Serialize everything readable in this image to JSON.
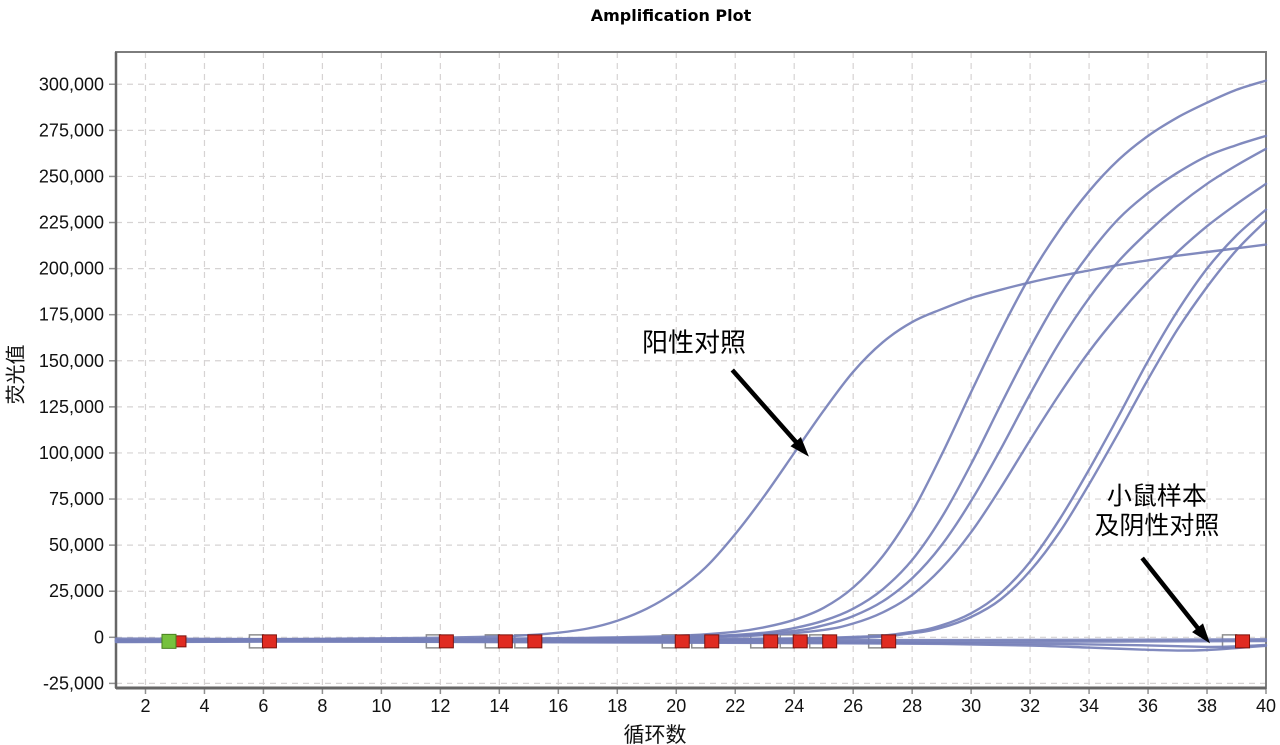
{
  "chart_data": {
    "type": "line",
    "title": "Amplification Plot",
    "xlabel": "循环数",
    "ylabel": "荧光值",
    "xlim": [
      1,
      40
    ],
    "ylim": [
      -27500,
      317500
    ],
    "grid": "dashed",
    "legend": "none",
    "x_ticks": [
      2,
      4,
      6,
      8,
      10,
      12,
      14,
      16,
      18,
      20,
      22,
      24,
      26,
      28,
      30,
      32,
      34,
      36,
      38,
      40
    ],
    "y_ticks": {
      "values": [
        -25000,
        0,
        25000,
        50000,
        75000,
        100000,
        125000,
        150000,
        175000,
        200000,
        225000,
        250000,
        275000,
        300000
      ],
      "labels": [
        "-25,000",
        "0",
        "25,000",
        "50,000",
        "75,000",
        "100,000",
        "125,000",
        "150,000",
        "175,000",
        "200,000",
        "225,000",
        "250,000",
        "275,000",
        "300,000"
      ]
    },
    "colors": {
      "curve": "#7680b8",
      "grid": "#d6d3d3",
      "frame": "#7d7d7d",
      "axis": "#666666",
      "marker_red": "#e02b21",
      "marker_red_border": "#7a120c",
      "marker_green": "#76c13d",
      "marker_green_border": "#49801f",
      "marker_open_border": "#8e8e8e",
      "marker_open_fill": "#ffffff",
      "annotation": "#000000"
    },
    "marker_row_value": -2200,
    "threshold_markers": [
      {
        "cycle": 3,
        "type": "green"
      },
      {
        "cycle": 6,
        "type": "red"
      },
      {
        "cycle": 12,
        "type": "red"
      },
      {
        "cycle": 14,
        "type": "red"
      },
      {
        "cycle": 15,
        "type": "red"
      },
      {
        "cycle": 20,
        "type": "red"
      },
      {
        "cycle": 21,
        "type": "red"
      },
      {
        "cycle": 23,
        "type": "red"
      },
      {
        "cycle": 24,
        "type": "red"
      },
      {
        "cycle": 25,
        "type": "red"
      },
      {
        "cycle": 27,
        "type": "red"
      },
      {
        "cycle": 39,
        "type": "red"
      }
    ],
    "series": [
      {
        "name": "positive-control",
        "points": [
          [
            1,
            -1500
          ],
          [
            4,
            -1200
          ],
          [
            8,
            -800
          ],
          [
            12,
            -200
          ],
          [
            14,
            500
          ],
          [
            15,
            1200
          ],
          [
            16,
            2500
          ],
          [
            17,
            4800
          ],
          [
            18,
            9000
          ],
          [
            19,
            15500
          ],
          [
            20,
            25000
          ],
          [
            21,
            38000
          ],
          [
            22,
            56000
          ],
          [
            23,
            77000
          ],
          [
            24,
            100000
          ],
          [
            25,
            123000
          ],
          [
            26,
            144000
          ],
          [
            27,
            160000
          ],
          [
            28,
            171000
          ],
          [
            29,
            178000
          ],
          [
            30,
            184000
          ],
          [
            31,
            188500
          ],
          [
            32,
            192500
          ],
          [
            33,
            196000
          ],
          [
            34,
            199000
          ],
          [
            35,
            202000
          ],
          [
            36,
            204500
          ],
          [
            37,
            207000
          ],
          [
            38,
            209000
          ],
          [
            39,
            211000
          ],
          [
            40,
            213000
          ]
        ]
      },
      {
        "name": "positive-sample-1",
        "points": [
          [
            1,
            -1800
          ],
          [
            10,
            -1200
          ],
          [
            16,
            -500
          ],
          [
            20,
            800
          ],
          [
            22,
            3000
          ],
          [
            23,
            5500
          ],
          [
            24,
            9500
          ],
          [
            25,
            16000
          ],
          [
            26,
            27000
          ],
          [
            27,
            44000
          ],
          [
            28,
            68000
          ],
          [
            29,
            99000
          ],
          [
            30,
            133000
          ],
          [
            31,
            166000
          ],
          [
            32,
            196000
          ],
          [
            33,
            221000
          ],
          [
            34,
            242000
          ],
          [
            35,
            259000
          ],
          [
            36,
            272000
          ],
          [
            37,
            282000
          ],
          [
            38,
            290000
          ],
          [
            39,
            297000
          ],
          [
            40,
            302000
          ]
        ]
      },
      {
        "name": "positive-sample-2",
        "points": [
          [
            1,
            -2000
          ],
          [
            12,
            -1400
          ],
          [
            18,
            -600
          ],
          [
            21,
            500
          ],
          [
            23,
            2500
          ],
          [
            24,
            5000
          ],
          [
            25,
            9000
          ],
          [
            26,
            15500
          ],
          [
            27,
            26000
          ],
          [
            28,
            42000
          ],
          [
            29,
            65000
          ],
          [
            30,
            94000
          ],
          [
            31,
            126000
          ],
          [
            32,
            157000
          ],
          [
            33,
            185000
          ],
          [
            34,
            208000
          ],
          [
            35,
            227000
          ],
          [
            36,
            241000
          ],
          [
            37,
            252000
          ],
          [
            38,
            261000
          ],
          [
            39,
            267000
          ],
          [
            40,
            272000
          ]
        ]
      },
      {
        "name": "positive-sample-3",
        "points": [
          [
            1,
            -1600
          ],
          [
            14,
            -1000
          ],
          [
            19,
            -300
          ],
          [
            22,
            1000
          ],
          [
            24,
            3500
          ],
          [
            25,
            6500
          ],
          [
            26,
            11500
          ],
          [
            27,
            19500
          ],
          [
            28,
            32000
          ],
          [
            29,
            50000
          ],
          [
            30,
            74000
          ],
          [
            31,
            102000
          ],
          [
            32,
            132000
          ],
          [
            33,
            160000
          ],
          [
            34,
            184000
          ],
          [
            35,
            204000
          ],
          [
            36,
            220000
          ],
          [
            37,
            234000
          ],
          [
            38,
            246000
          ],
          [
            39,
            256000
          ],
          [
            40,
            265000
          ]
        ]
      },
      {
        "name": "positive-sample-4",
        "points": [
          [
            1,
            -2200
          ],
          [
            14,
            -1600
          ],
          [
            20,
            -400
          ],
          [
            23,
            1200
          ],
          [
            25,
            4000
          ],
          [
            26,
            7500
          ],
          [
            27,
            13500
          ],
          [
            28,
            23000
          ],
          [
            29,
            37500
          ],
          [
            30,
            57000
          ],
          [
            31,
            81000
          ],
          [
            32,
            107000
          ],
          [
            33,
            132000
          ],
          [
            34,
            155000
          ],
          [
            35,
            175000
          ],
          [
            36,
            193000
          ],
          [
            37,
            209000
          ],
          [
            38,
            223000
          ],
          [
            39,
            235000
          ],
          [
            40,
            246000
          ]
        ]
      },
      {
        "name": "late-positive-sample-1",
        "points": [
          [
            1,
            -1800
          ],
          [
            20,
            -1000
          ],
          [
            26,
            200
          ],
          [
            28,
            3000
          ],
          [
            29,
            6500
          ],
          [
            30,
            13000
          ],
          [
            31,
            24000
          ],
          [
            32,
            41000
          ],
          [
            33,
            64000
          ],
          [
            34,
            91000
          ],
          [
            35,
            120000
          ],
          [
            36,
            150000
          ],
          [
            37,
            177000
          ],
          [
            38,
            200000
          ],
          [
            39,
            218000
          ],
          [
            40,
            232000
          ]
        ]
      },
      {
        "name": "late-positive-sample-2",
        "points": [
          [
            1,
            -2400
          ],
          [
            20,
            -1400
          ],
          [
            26,
            -300
          ],
          [
            28,
            2200
          ],
          [
            29,
            5200
          ],
          [
            30,
            11000
          ],
          [
            31,
            20500
          ],
          [
            32,
            36000
          ],
          [
            33,
            57000
          ],
          [
            34,
            83000
          ],
          [
            35,
            111000
          ],
          [
            36,
            140000
          ],
          [
            37,
            167000
          ],
          [
            38,
            190000
          ],
          [
            39,
            210000
          ],
          [
            40,
            226000
          ]
        ]
      },
      {
        "name": "mouse-sample-1",
        "points": [
          [
            1,
            -700
          ],
          [
            6,
            -1000
          ],
          [
            14,
            -1300
          ],
          [
            22,
            -1500
          ],
          [
            30,
            -1500
          ],
          [
            36,
            -1300
          ],
          [
            40,
            -1100
          ]
        ]
      },
      {
        "name": "mouse-sample-2",
        "points": [
          [
            1,
            -1400
          ],
          [
            8,
            -1800
          ],
          [
            16,
            -2100
          ],
          [
            24,
            -2300
          ],
          [
            32,
            -2400
          ],
          [
            40,
            -2000
          ]
        ]
      },
      {
        "name": "mouse-sample-3",
        "points": [
          [
            1,
            -2600
          ],
          [
            10,
            -2300
          ],
          [
            20,
            -2700
          ],
          [
            28,
            -3000
          ],
          [
            33,
            -3600
          ],
          [
            36,
            -4400
          ],
          [
            38,
            -5200
          ],
          [
            39,
            -4900
          ],
          [
            40,
            -4100
          ]
        ]
      },
      {
        "name": "negative-control",
        "points": [
          [
            1,
            -1900
          ],
          [
            8,
            -2300
          ],
          [
            16,
            -2700
          ],
          [
            24,
            -3100
          ],
          [
            29,
            -3600
          ],
          [
            32,
            -4500
          ],
          [
            34,
            -5600
          ],
          [
            36,
            -6800
          ],
          [
            37,
            -7200
          ],
          [
            38,
            -6900
          ],
          [
            39,
            -5800
          ],
          [
            40,
            -4600
          ]
        ]
      }
    ],
    "annotations": [
      {
        "name": "positive-control",
        "lines": [
          "阳性对照"
        ],
        "text_at": [
          20.6,
          155000
        ],
        "font_size": 26,
        "arrow": {
          "from": [
            21.9,
            145000
          ],
          "to": [
            24.5,
            98000
          ]
        }
      },
      {
        "name": "mouse-samples-negative-control",
        "lines": [
          "小鼠样本",
          "及阴性对照"
        ],
        "text_at": [
          36.3,
          72000
        ],
        "font_size": 25,
        "arrow": {
          "from": [
            35.8,
            43000
          ],
          "to": [
            38.1,
            -3300
          ]
        }
      }
    ]
  }
}
